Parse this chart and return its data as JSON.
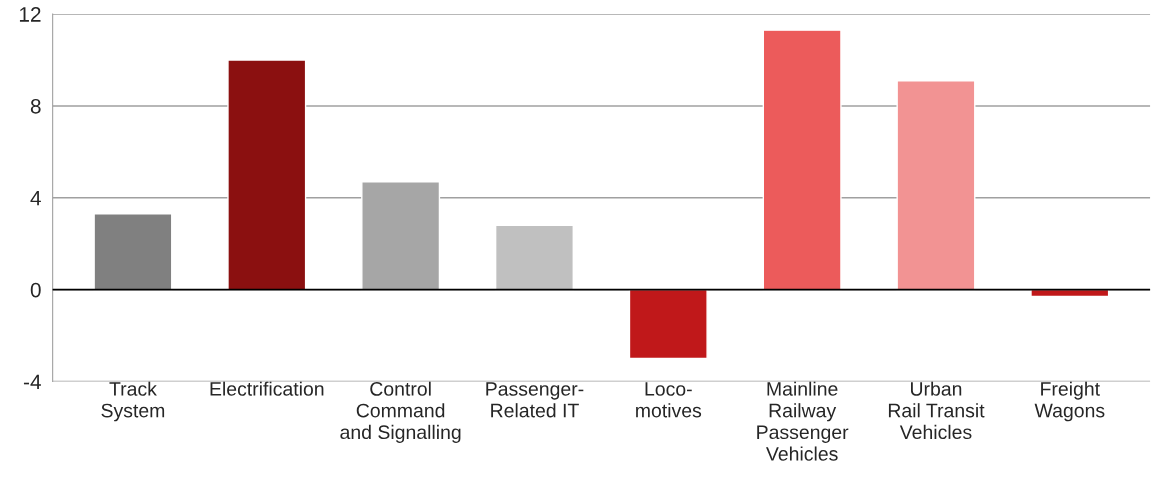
{
  "chart_data": {
    "type": "bar",
    "categories": [
      "Track\nSystem",
      "Electrification",
      "Control\nCommand\nand Signalling",
      "Passenger-\nRelated IT",
      "Loco-\nmotives",
      "Mainline\nRailway\nPassenger\nVehicles",
      "Urban\nRail Transit\nVehicles",
      "Freight\nWagons"
    ],
    "values": [
      3.3,
      10.0,
      4.7,
      2.8,
      -3.0,
      11.3,
      9.1,
      -0.3
    ],
    "colors": [
      "#808080",
      "#8b1010",
      "#a6a6a6",
      "#c0c0c0",
      "#c0181a",
      "#ec5b5b",
      "#f29393",
      "#c0181a"
    ],
    "ylim": [
      -4,
      12
    ],
    "yticks": [
      -4,
      0,
      4,
      8,
      12
    ],
    "grid": "y",
    "ref_lines": [
      {
        "axis": "y",
        "value": 0,
        "color": "#000000"
      }
    ]
  }
}
